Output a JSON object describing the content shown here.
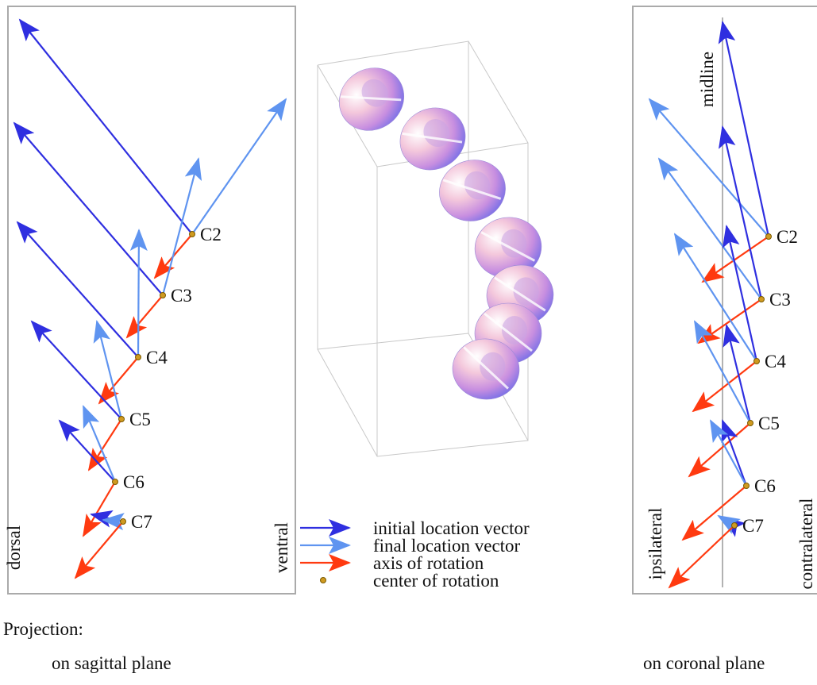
{
  "sagittal_panel": {
    "vertebrae": [
      "C2",
      "C3",
      "C4",
      "C5",
      "C6",
      "C7"
    ],
    "left_label": "dorsal",
    "right_label": "ventral"
  },
  "coronal_panel": {
    "vertebrae": [
      "C2",
      "C3",
      "C4",
      "C5",
      "C6",
      "C7"
    ],
    "top_label": "midline",
    "left_label": "ipsilateral",
    "right_label": "contralateral"
  },
  "legend": [
    "initial location vector",
    "final location vector",
    "axis of rotation",
    "center of rotation"
  ],
  "captions": {
    "projection": "Projection:",
    "sagittal": "on sagittal plane",
    "coronal": "on coronal plane"
  }
}
